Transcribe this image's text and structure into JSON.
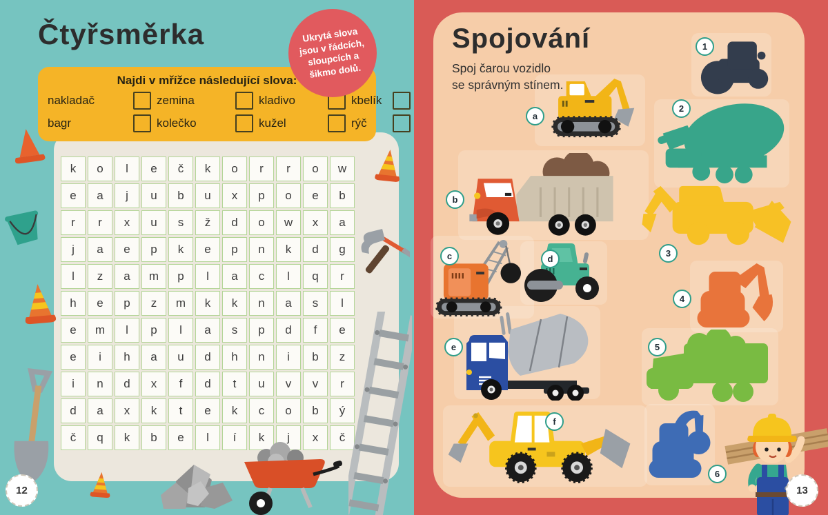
{
  "colors": {
    "left_bg": "#76c4c0",
    "right_bg": "#d95b56",
    "panel_cream": "#ece7dd",
    "box_yellow": "#f5b427",
    "hint_pink": "#e15a5e",
    "panel_peach": "#f6cda9",
    "grid_border": "#b3d596",
    "shadow_navy": "#333d4d",
    "shadow_teal": "#38a58a",
    "shadow_yellow": "#f7c125",
    "shadow_orange": "#e8743b",
    "shadow_green": "#79bb42",
    "shadow_blue": "#3e6cb5"
  },
  "left_page": {
    "title": "Čtyřsměrka",
    "hint_badge": "Ukrytá slova jsou v řádcích, sloupcích a šikmo dolů.",
    "instruction": "Najdi v mřížce následující slova:",
    "words": [
      "nakladač",
      "zemina",
      "kladivo",
      "kbelík",
      "bagr",
      "kolečko",
      "kužel",
      "rýč"
    ],
    "grid": [
      [
        "k",
        "o",
        "l",
        "e",
        "č",
        "k",
        "o",
        "r",
        "r",
        "o",
        "w"
      ],
      [
        "e",
        "a",
        "j",
        "u",
        "b",
        "u",
        "x",
        "p",
        "o",
        "e",
        "b"
      ],
      [
        "r",
        "r",
        "x",
        "u",
        "s",
        "ž",
        "d",
        "o",
        "w",
        "x",
        "a"
      ],
      [
        "j",
        "a",
        "e",
        "p",
        "k",
        "e",
        "p",
        "n",
        "k",
        "d",
        "g"
      ],
      [
        "l",
        "z",
        "a",
        "m",
        "p",
        "l",
        "a",
        "c",
        "l",
        "q",
        "r"
      ],
      [
        "h",
        "e",
        "p",
        "z",
        "m",
        "k",
        "k",
        "n",
        "a",
        "s",
        "l"
      ],
      [
        "e",
        "m",
        "l",
        "p",
        "l",
        "a",
        "s",
        "p",
        "d",
        "f",
        "e"
      ],
      [
        "e",
        "i",
        "h",
        "a",
        "u",
        "d",
        "h",
        "n",
        "i",
        "b",
        "z"
      ],
      [
        "i",
        "n",
        "d",
        "x",
        "f",
        "d",
        "t",
        "u",
        "v",
        "v",
        "r"
      ],
      [
        "d",
        "a",
        "x",
        "k",
        "t",
        "e",
        "k",
        "c",
        "o",
        "b",
        "ý"
      ],
      [
        "č",
        "q",
        "k",
        "b",
        "e",
        "l",
        "í",
        "k",
        "j",
        "x",
        "č"
      ]
    ],
    "page_number": "12"
  },
  "right_page": {
    "title": "Spojování",
    "instruction_line1": "Spoj čarou vozidlo",
    "instruction_line2": "se správným stínem.",
    "vehicles": [
      {
        "label": "a",
        "name": "excavator"
      },
      {
        "label": "b",
        "name": "dump truck"
      },
      {
        "label": "c",
        "name": "crane with wrecking ball"
      },
      {
        "label": "d",
        "name": "road roller"
      },
      {
        "label": "e",
        "name": "cement mixer truck"
      },
      {
        "label": "f",
        "name": "backhoe loader"
      }
    ],
    "shadows": [
      {
        "number": "1",
        "name": "road roller shadow"
      },
      {
        "number": "2",
        "name": "cement mixer shadow"
      },
      {
        "number": "3",
        "name": "backhoe loader shadow"
      },
      {
        "number": "4",
        "name": "excavator shadow"
      },
      {
        "number": "5",
        "name": "dump truck shadow"
      },
      {
        "number": "6",
        "name": "crane shadow"
      }
    ],
    "page_number": "13"
  }
}
